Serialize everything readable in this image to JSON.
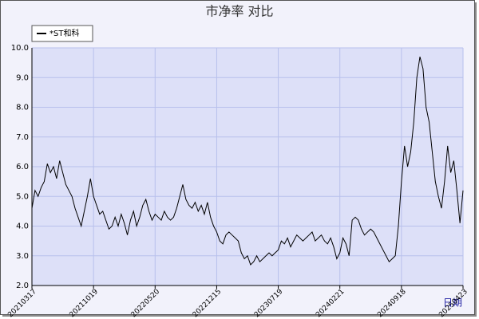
{
  "chart_data": {
    "type": "line",
    "title": "市净率  对比",
    "xlabel": "日期",
    "categories": [
      "20210317",
      null,
      null,
      null,
      null,
      null,
      null,
      null,
      null,
      null,
      null,
      null,
      null,
      null,
      null,
      null,
      null,
      null,
      null,
      null,
      "20211019",
      null,
      null,
      null,
      null,
      null,
      null,
      null,
      null,
      null,
      null,
      null,
      null,
      null,
      null,
      null,
      null,
      null,
      null,
      null,
      "20220520",
      null,
      null,
      null,
      null,
      null,
      null,
      null,
      null,
      null,
      null,
      null,
      null,
      null,
      null,
      null,
      null,
      null,
      null,
      null,
      "20221215",
      null,
      null,
      null,
      null,
      null,
      null,
      null,
      null,
      null,
      null,
      null,
      null,
      null,
      null,
      null,
      null,
      null,
      null,
      null,
      "20230719",
      null,
      null,
      null,
      null,
      null,
      null,
      null,
      null,
      null,
      null,
      null,
      null,
      null,
      null,
      null,
      null,
      null,
      null,
      null,
      "20240221",
      null,
      null,
      null,
      null,
      null,
      null,
      null,
      null,
      null,
      null,
      null,
      null,
      null,
      null,
      null,
      null,
      null,
      null,
      null,
      "20240918",
      null,
      null,
      null,
      null,
      null,
      null,
      null,
      null,
      null,
      null,
      null,
      null,
      null,
      null,
      null,
      null,
      null,
      null,
      null,
      "20250423"
    ],
    "series": [
      {
        "name": "*ST和科",
        "color": "#000000",
        "values": [
          4.6,
          5.2,
          5.0,
          5.3,
          5.5,
          6.1,
          5.8,
          6.0,
          5.6,
          6.2,
          5.8,
          5.4,
          5.2,
          5.0,
          4.6,
          4.3,
          4.0,
          4.5,
          5.0,
          5.6,
          5.0,
          4.7,
          4.4,
          4.5,
          4.2,
          3.9,
          4.0,
          4.3,
          4.0,
          4.4,
          4.1,
          3.7,
          4.2,
          4.5,
          4.0,
          4.3,
          4.7,
          4.9,
          4.5,
          4.2,
          4.4,
          4.3,
          4.2,
          4.5,
          4.3,
          4.2,
          4.3,
          4.6,
          5.0,
          5.4,
          4.9,
          4.7,
          4.6,
          4.8,
          4.5,
          4.7,
          4.4,
          4.8,
          4.3,
          4.0,
          3.8,
          3.5,
          3.4,
          3.7,
          3.8,
          3.7,
          3.6,
          3.5,
          3.1,
          2.9,
          3.0,
          2.7,
          2.8,
          3.0,
          2.8,
          2.9,
          3.0,
          3.1,
          3.0,
          3.1,
          3.2,
          3.5,
          3.4,
          3.6,
          3.3,
          3.5,
          3.7,
          3.6,
          3.5,
          3.6,
          3.7,
          3.8,
          3.5,
          3.6,
          3.7,
          3.5,
          3.4,
          3.6,
          3.3,
          2.9,
          3.1,
          3.6,
          3.4,
          3.0,
          4.2,
          4.3,
          4.2,
          3.9,
          3.7,
          3.8,
          3.9,
          3.8,
          3.6,
          3.4,
          3.2,
          3.0,
          2.8,
          2.9,
          3.0,
          4.0,
          5.5,
          6.7,
          6.0,
          6.5,
          7.5,
          9.0,
          9.7,
          9.3,
          8.0,
          7.5,
          6.5,
          5.5,
          5.0,
          4.6,
          5.5,
          6.7,
          5.8,
          6.2,
          5.2,
          4.1,
          5.2
        ]
      }
    ],
    "ylim": [
      2,
      10
    ],
    "yticks": [
      {
        "value": 2,
        "label": "2.0"
      },
      {
        "value": 3,
        "label": "3.0"
      },
      {
        "value": 4,
        "label": "4.0"
      },
      {
        "value": 5,
        "label": "5.0"
      },
      {
        "value": 6,
        "label": "6.0"
      },
      {
        "value": 7,
        "label": "7.0"
      },
      {
        "value": 8,
        "label": "8.0"
      },
      {
        "value": 9,
        "label": "9.0"
      },
      {
        "value": 10,
        "label": "10.0"
      }
    ],
    "grid": true,
    "legend": "top-left"
  }
}
